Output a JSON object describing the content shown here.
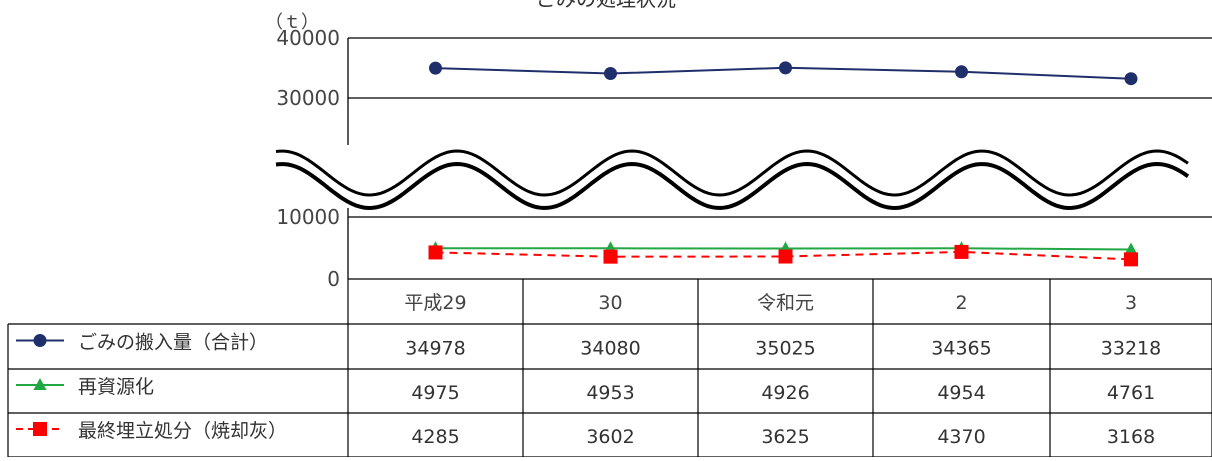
{
  "chart_data": {
    "type": "line",
    "title": "ごみの処理状況",
    "ylabel": "（ｔ）",
    "axis_break": {
      "lower_range": [
        0,
        10000
      ],
      "upper_range": [
        30000,
        40000
      ]
    },
    "yticks": [
      "40000",
      "30000",
      "10000",
      "0"
    ],
    "categories": [
      "平成29",
      "30",
      "令和元",
      "2",
      "3"
    ],
    "series": [
      {
        "name": "ごみの搬入量（合計）",
        "values": [
          34978,
          34080,
          35025,
          34365,
          33218
        ],
        "display": [
          "34978",
          "34080",
          "35025",
          "34365",
          "33218"
        ],
        "color": "#1f2f6b",
        "marker": "circle",
        "line": "solid"
      },
      {
        "name": "再資源化",
        "values": [
          4975,
          4953,
          4926,
          4954,
          4761
        ],
        "display": [
          "4975",
          "4953",
          "4926",
          "4954",
          "4761"
        ],
        "color": "#21a845",
        "marker": "triangle",
        "line": "solid"
      },
      {
        "name": "最終埋立処分（焼却灰）",
        "values": [
          4285,
          3602,
          3625,
          4370,
          3168
        ],
        "display": [
          "4285",
          "3602",
          "3625",
          "4370",
          "3168"
        ],
        "color": "#ff0000",
        "marker": "square",
        "line": "dashed"
      }
    ],
    "grid": true,
    "legend": "data-table"
  }
}
